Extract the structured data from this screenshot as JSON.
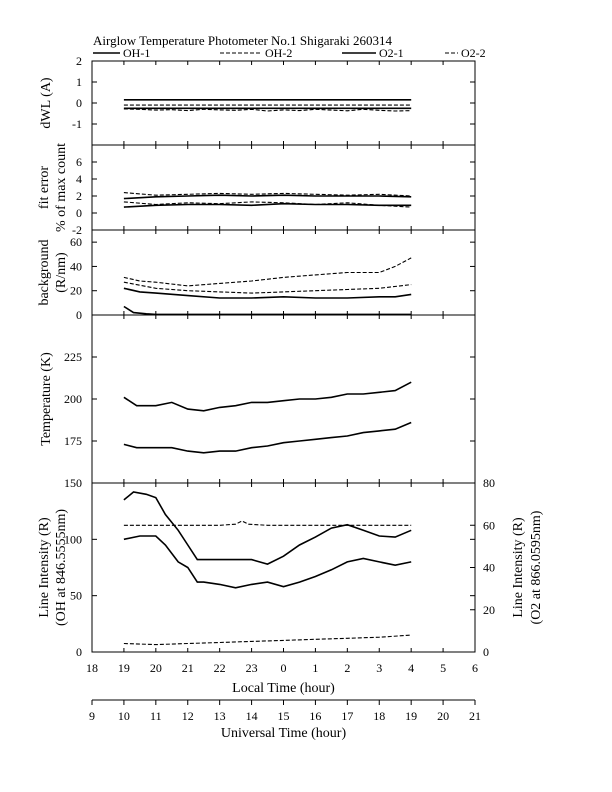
{
  "title": "Airglow Temperature Photometer No.1  Shigaraki   260314",
  "legend": {
    "items": [
      {
        "label": "OH-1",
        "style": "solid"
      },
      {
        "label": "OH-2",
        "style": "dashed"
      },
      {
        "label": "O2-1",
        "style": "solid"
      },
      {
        "label": "O2-2",
        "style": "dashed"
      }
    ]
  },
  "chart_data": [
    {
      "id": "dwl",
      "type": "line",
      "ylabel_lines": [
        "dWL (A)"
      ],
      "ylim": [
        -2,
        2
      ],
      "yticks": [
        "2",
        "1",
        "0",
        "-1"
      ],
      "series": [
        {
          "name": "OH-1",
          "style": "solid",
          "constant": 0.15
        },
        {
          "name": "OH-2",
          "style": "dashed",
          "constant": -0.1
        },
        {
          "name": "O2-1",
          "style": "solid",
          "constant": -0.25
        },
        {
          "name": "O2-2",
          "style": "dashed",
          "x": [
            10,
            10.5,
            11,
            11.5,
            12,
            12.5,
            13,
            13.5,
            14,
            14.5,
            15,
            15.5,
            16,
            16.5,
            17,
            17.5,
            18,
            18.5,
            19
          ],
          "values": [
            -0.28,
            -0.3,
            -0.34,
            -0.32,
            -0.36,
            -0.3,
            -0.33,
            -0.35,
            -0.3,
            -0.38,
            -0.33,
            -0.36,
            -0.3,
            -0.34,
            -0.37,
            -0.3,
            -0.35,
            -0.38,
            -0.36
          ]
        }
      ]
    },
    {
      "id": "fit",
      "type": "line",
      "ylabel_lines": [
        "fit error",
        "% of max count"
      ],
      "ylim": [
        -2,
        8
      ],
      "yticks": [
        "6",
        "4",
        "2",
        "0",
        "-2"
      ],
      "series": [
        {
          "name": "OH-1",
          "style": "solid",
          "x": [
            10,
            11,
            12,
            13,
            14,
            15,
            16,
            17,
            18,
            19
          ],
          "values": [
            1.7,
            1.9,
            2.0,
            2.1,
            2.0,
            2.1,
            2.0,
            2.0,
            2.0,
            1.9
          ]
        },
        {
          "name": "OH-2",
          "style": "dashed",
          "x": [
            10,
            11,
            12,
            13,
            14,
            15,
            16,
            17,
            18,
            19
          ],
          "values": [
            2.4,
            2.1,
            2.2,
            2.3,
            2.2,
            2.3,
            2.2,
            2.1,
            2.2,
            2.0
          ]
        },
        {
          "name": "O2-1",
          "style": "solid",
          "x": [
            10,
            11,
            12,
            13,
            14,
            15,
            16,
            17,
            18,
            19
          ],
          "values": [
            0.7,
            0.9,
            1.0,
            1.0,
            0.9,
            1.1,
            1.0,
            1.0,
            0.9,
            0.9
          ]
        },
        {
          "name": "O2-2",
          "style": "dashed",
          "x": [
            10,
            11,
            12,
            13,
            14,
            15,
            16,
            17,
            18,
            19
          ],
          "values": [
            1.3,
            1.0,
            1.2,
            1.1,
            1.3,
            1.2,
            1.0,
            1.2,
            0.9,
            0.7
          ]
        }
      ]
    },
    {
      "id": "bg",
      "type": "line",
      "ylabel_lines": [
        "background",
        "(R/nm)"
      ],
      "ylim": [
        0,
        70
      ],
      "yticks": [
        "60",
        "40",
        "20",
        "0"
      ],
      "series": [
        {
          "name": "OH-1",
          "style": "solid",
          "x": [
            10,
            10.5,
            11,
            12,
            13,
            14,
            15,
            16,
            17,
            18,
            18.5,
            19
          ],
          "values": [
            22,
            19,
            18,
            16,
            14,
            14,
            15,
            14,
            14,
            15,
            15,
            17
          ]
        },
        {
          "name": "OH-2",
          "style": "dashed",
          "x": [
            10,
            10.5,
            11,
            12,
            13,
            14,
            15,
            16,
            17,
            18,
            18.5,
            19
          ],
          "values": [
            31,
            28,
            27,
            24,
            26,
            28,
            31,
            33,
            35,
            35,
            40,
            47
          ]
        },
        {
          "name": "O2-1",
          "style": "solid",
          "x": [
            10,
            10.3,
            10.7,
            11,
            12,
            13,
            14,
            15,
            16,
            17,
            18,
            19
          ],
          "values": [
            7,
            2,
            1,
            0.5,
            0.5,
            0.5,
            0.5,
            0.5,
            0.5,
            0.5,
            0.5,
            0.5
          ]
        },
        {
          "name": "O2-2",
          "style": "dashed",
          "x": [
            10,
            11,
            12,
            13,
            14,
            15,
            16,
            17,
            18,
            19
          ],
          "values": [
            27,
            22,
            20,
            19,
            18,
            19,
            20,
            21,
            22,
            25
          ]
        }
      ]
    },
    {
      "id": "temp",
      "type": "line",
      "ylabel_lines": [
        "Temperature (K)"
      ],
      "ylim": [
        150,
        250
      ],
      "yticks": [
        "225",
        "200",
        "175"
      ],
      "series": [
        {
          "name": "OH",
          "style": "solid",
          "x": [
            10,
            10.4,
            11,
            11.5,
            12,
            12.5,
            13,
            13.5,
            14,
            14.5,
            15,
            15.5,
            16,
            16.5,
            17,
            17.5,
            18,
            18.5,
            19
          ],
          "values": [
            201,
            196,
            196,
            198,
            194,
            193,
            195,
            196,
            198,
            198,
            199,
            200,
            200,
            201,
            203,
            203,
            204,
            205,
            210
          ]
        },
        {
          "name": "O2",
          "style": "solid",
          "x": [
            10,
            10.4,
            11,
            11.5,
            12,
            12.5,
            13,
            13.5,
            14,
            14.5,
            15,
            15.5,
            16,
            16.5,
            17,
            17.5,
            18,
            18.5,
            19
          ],
          "values": [
            173,
            171,
            171,
            171,
            169,
            168,
            169,
            169,
            171,
            172,
            174,
            175,
            176,
            177,
            178,
            180,
            181,
            182,
            186
          ]
        }
      ]
    },
    {
      "id": "intensity",
      "type": "line",
      "ylabel_lines": [
        "Line Intensity (R)",
        "(OH at 846.5555nm)"
      ],
      "ylabel2_lines": [
        "Line Intensity (R)",
        "(O2 at 866.0595nm)"
      ],
      "ylim": [
        0,
        150
      ],
      "yticks": [
        "150",
        "100",
        "50",
        "0"
      ],
      "ylim2": [
        0,
        80
      ],
      "yticks2": [
        "80",
        "60",
        "40",
        "20",
        "0"
      ],
      "series": [
        {
          "name": "OH-1",
          "style": "solid",
          "axis": "left",
          "x": [
            10,
            10.3,
            10.7,
            11,
            11.3,
            11.7,
            12,
            12.3,
            12.5,
            13,
            13.5,
            14,
            14.5,
            15,
            15.5,
            16,
            16.5,
            17,
            17.5,
            18,
            18.5,
            19
          ],
          "values": [
            135,
            142,
            140,
            137,
            122,
            108,
            95,
            82,
            82,
            82,
            82,
            82,
            78,
            85,
            95,
            102,
            110,
            113,
            108,
            103,
            102,
            108
          ]
        },
        {
          "name": "OH-2",
          "style": "solid",
          "axis": "left",
          "x": [
            10,
            10.5,
            11,
            11.3,
            11.7,
            12,
            12.3,
            12.5,
            13,
            13.5,
            14,
            14.5,
            15,
            15.5,
            16,
            16.5,
            17,
            17.5,
            18,
            18.5,
            19
          ],
          "values": [
            100,
            103,
            103,
            95,
            80,
            75,
            62,
            62,
            60,
            57,
            60,
            62,
            58,
            62,
            67,
            73,
            80,
            83,
            80,
            77,
            80
          ]
        },
        {
          "name": "O2-1",
          "style": "dashed",
          "axis": "right",
          "x": [
            10,
            12,
            13,
            13.5,
            13.7,
            13.9,
            14.5,
            16,
            18,
            19
          ],
          "values": [
            60,
            60,
            60,
            60.5,
            62,
            60.5,
            60,
            60,
            60,
            60
          ]
        },
        {
          "name": "O2-2",
          "style": "dashed",
          "axis": "right",
          "x": [
            10,
            11,
            12,
            13,
            14,
            15,
            16,
            17,
            18,
            19
          ],
          "values": [
            4,
            3.5,
            4,
            4.5,
            5,
            5.5,
            6,
            6.5,
            7,
            8
          ]
        }
      ]
    }
  ],
  "x_axis": {
    "ut_min": 9,
    "ut_max": 21,
    "local_ticks": [
      "18",
      "19",
      "20",
      "21",
      "22",
      "23",
      "0",
      "1",
      "2",
      "3",
      "4",
      "5",
      "6"
    ],
    "ut_ticks": [
      "9",
      "10",
      "11",
      "12",
      "13",
      "14",
      "15",
      "16",
      "17",
      "18",
      "19",
      "20",
      "21"
    ],
    "local_label": "Local Time (hour)",
    "ut_label": "Universal Time (hour)"
  }
}
